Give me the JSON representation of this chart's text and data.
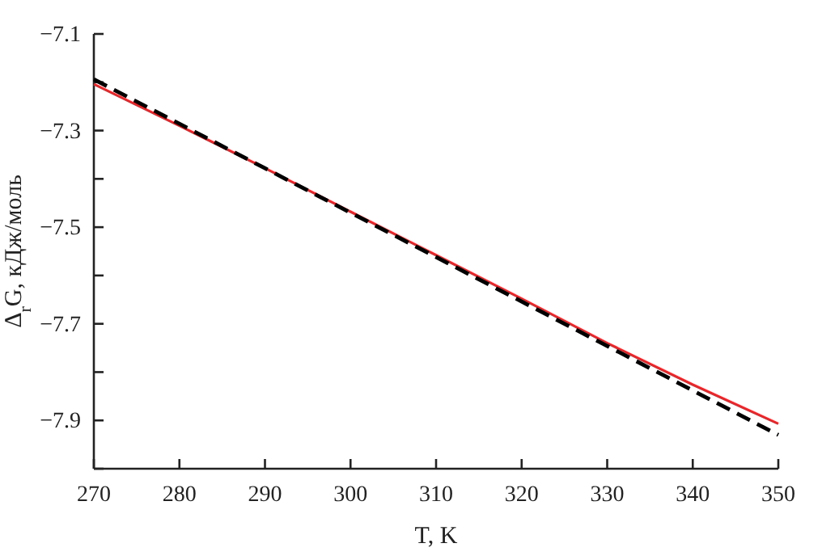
{
  "chart_data": {
    "type": "line",
    "xlabel": "T, K",
    "ylabel": "Δ$_{r}$G, кДж/моль",
    "x": [
      270,
      280,
      290,
      300,
      310,
      320,
      330,
      340,
      350
    ],
    "series": [
      {
        "color": "#e8262a",
        "line_style": "solid",
        "values": [
          -7.204,
          -7.29,
          -7.378,
          -7.468,
          -7.558,
          -7.648,
          -7.74,
          -7.826,
          -7.907
        ]
      },
      {
        "color": "#000000",
        "line_style": "dashed",
        "values": [
          -7.194,
          -7.286,
          -7.378,
          -7.47,
          -7.562,
          -7.654,
          -7.746,
          -7.838,
          -7.93
        ]
      }
    ],
    "xlim": [
      270,
      350
    ],
    "xticks": [
      270,
      280,
      290,
      300,
      310,
      320,
      330,
      340,
      350
    ],
    "ylim": [
      -8.0,
      -7.1
    ],
    "yticks": [
      {
        "value": -8.0,
        "label": null
      },
      {
        "value": -7.9,
        "label": "−7.9"
      },
      {
        "value": -7.8,
        "label": null
      },
      {
        "value": -7.7,
        "label": "−7.7"
      },
      {
        "value": -7.6,
        "label": null
      },
      {
        "value": -7.5,
        "label": "−7.5"
      },
      {
        "value": -7.4,
        "label": null
      },
      {
        "value": -7.3,
        "label": "−7.3"
      },
      {
        "value": -7.2,
        "label": null
      },
      {
        "value": -7.1,
        "label": "−7.1"
      }
    ],
    "grid": false
  }
}
